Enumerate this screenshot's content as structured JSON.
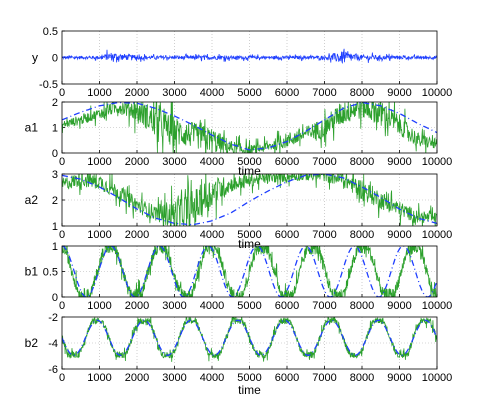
{
  "chart_data": [
    {
      "type": "line",
      "ylabel": "y",
      "xlim": [
        0,
        10000
      ],
      "ylim": [
        -0.5,
        0.5
      ],
      "xticks": [
        "0",
        "1000",
        "2000",
        "3000",
        "4000",
        "5000",
        "6000",
        "7000",
        "8000",
        "9000",
        "10000"
      ],
      "yticks": [
        "-0.5",
        "0",
        "0.5"
      ],
      "grid": true,
      "series": [
        {
          "color": "#1f3fff",
          "style": "solid",
          "kind": "noise",
          "x": [
            0,
            1000,
            1300,
            2000,
            2500,
            3000,
            4000,
            5000,
            6000,
            7000,
            7500,
            7700,
            8000,
            9000,
            10000
          ],
          "values": [
            0,
            0,
            0.02,
            0,
            0,
            0,
            0,
            0,
            0,
            0,
            0,
            0,
            0,
            0,
            0
          ],
          "amp": [
            0.03,
            0.03,
            0.08,
            0.04,
            0.03,
            0.03,
            0.04,
            0.03,
            0.03,
            0.03,
            0.12,
            0.08,
            0.05,
            0.03,
            0.03
          ]
        }
      ]
    },
    {
      "type": "line",
      "ylabel": "a1",
      "xlabel": "time",
      "xlim": [
        0,
        10000
      ],
      "ylim": [
        0,
        2
      ],
      "xticks": [
        "0",
        "1000",
        "2000",
        "3000",
        "4000",
        "5000",
        "6000",
        "7000",
        "8000",
        "9000",
        "10000"
      ],
      "yticks": [
        "0",
        "1",
        "2"
      ],
      "grid": true,
      "series": [
        {
          "color": "#2ca02c",
          "style": "solid",
          "kind": "noise",
          "x": [
            0,
            500,
            1000,
            1500,
            2000,
            2500,
            3000,
            3500,
            4000,
            4500,
            5000,
            5500,
            6000,
            6500,
            7000,
            7500,
            8000,
            8500,
            9000,
            9500,
            10000
          ],
          "values": [
            1.1,
            1.3,
            1.55,
            1.8,
            1.7,
            1.2,
            0.85,
            0.7,
            0.5,
            0.2,
            0.1,
            0.25,
            0.5,
            0.75,
            1.0,
            1.6,
            1.85,
            1.6,
            1.1,
            0.5,
            0.35
          ],
          "amp": [
            0.15,
            0.2,
            0.2,
            0.25,
            0.45,
            0.6,
            0.6,
            0.5,
            0.5,
            0.3,
            0.2,
            0.2,
            0.3,
            0.3,
            0.4,
            0.5,
            0.5,
            0.5,
            0.4,
            0.3,
            0.2
          ]
        },
        {
          "color": "#1f3fff",
          "style": "dashed",
          "kind": "curve",
          "x": [
            0,
            500,
            1000,
            1500,
            2000,
            2500,
            3000,
            3500,
            4000,
            4500,
            5000,
            5500,
            6000,
            6500,
            7000,
            7500,
            8000,
            8500,
            9000,
            9500,
            10000
          ],
          "values": [
            1.3,
            1.6,
            1.85,
            1.98,
            1.95,
            1.75,
            1.45,
            1.1,
            0.7,
            0.35,
            0.12,
            0.2,
            0.45,
            0.85,
            1.3,
            1.75,
            1.98,
            1.85,
            1.55,
            1.15,
            0.8
          ]
        }
      ]
    },
    {
      "type": "line",
      "ylabel": "a2",
      "xlabel": "time",
      "xlim": [
        0,
        10000
      ],
      "ylim": [
        1,
        3
      ],
      "xticks": [
        "0",
        "1000",
        "2000",
        "3000",
        "4000",
        "5000",
        "6000",
        "7000",
        "8000",
        "9000",
        "10000"
      ],
      "yticks": [
        "1",
        "2",
        "3"
      ],
      "grid": true,
      "series": [
        {
          "color": "#2ca02c",
          "style": "solid",
          "kind": "noise",
          "x": [
            0,
            500,
            1000,
            1500,
            2000,
            2500,
            3000,
            3500,
            4000,
            4500,
            5000,
            5500,
            6000,
            6500,
            7000,
            7500,
            8000,
            8500,
            9000,
            9500,
            10000
          ],
          "values": [
            2.6,
            2.8,
            2.7,
            2.3,
            1.8,
            1.5,
            1.45,
            1.7,
            2.3,
            2.6,
            2.75,
            2.85,
            2.9,
            2.95,
            2.95,
            2.8,
            2.4,
            2.0,
            1.65,
            1.35,
            1.3
          ],
          "amp": [
            0.25,
            0.3,
            0.3,
            0.3,
            0.3,
            0.3,
            0.6,
            0.7,
            0.6,
            0.3,
            0.25,
            0.2,
            0.2,
            0.2,
            0.25,
            0.3,
            0.4,
            0.35,
            0.3,
            0.25,
            0.2
          ]
        },
        {
          "color": "#1f3fff",
          "style": "dashed",
          "kind": "curve",
          "x": [
            0,
            500,
            1000,
            1500,
            2000,
            2500,
            3000,
            3500,
            4000,
            4500,
            5000,
            5500,
            6000,
            6500,
            7000,
            7500,
            8000,
            8500,
            9000,
            9500,
            10000
          ],
          "values": [
            2.95,
            2.8,
            2.5,
            2.1,
            1.65,
            1.3,
            1.1,
            1.05,
            1.2,
            1.5,
            1.95,
            2.35,
            2.7,
            2.95,
            3.0,
            2.85,
            2.5,
            2.1,
            1.65,
            1.3,
            1.1
          ]
        }
      ]
    },
    {
      "type": "line",
      "ylabel": "b1",
      "xlim": [
        0,
        10000
      ],
      "ylim": [
        0,
        1
      ],
      "xticks": [
        "0",
        "1000",
        "2000",
        "3000",
        "4000",
        "5000",
        "6000",
        "7000",
        "8000",
        "9000",
        "10000"
      ],
      "yticks": [
        "0",
        "0.5",
        "1"
      ],
      "grid": true,
      "series": [
        {
          "color": "#2ca02c",
          "style": "solid",
          "kind": "sine-noise",
          "period": 1350,
          "phase": 0.3,
          "mid": 0.5,
          "amp_wave": 0.45,
          "noise": 0.12
        },
        {
          "color": "#1f3fff",
          "style": "dashed",
          "kind": "sine",
          "period": 1300,
          "phase": 0.25,
          "mid": 0.5,
          "amp_wave": 0.5
        }
      ]
    },
    {
      "type": "line",
      "ylabel": "b2",
      "xlabel": "time",
      "xlim": [
        0,
        10000
      ],
      "ylim": [
        -6,
        -2
      ],
      "xticks": [
        "0",
        "1000",
        "2000",
        "3000",
        "4000",
        "5000",
        "6000",
        "7000",
        "8000",
        "9000",
        "10000"
      ],
      "yticks": [
        "-6",
        "-4",
        "-2"
      ],
      "grid": true,
      "series": [
        {
          "color": "#2ca02c",
          "style": "solid",
          "kind": "sine-noise",
          "period": 1250,
          "phase": 0.5,
          "mid": -3.6,
          "amp_wave": 1.3,
          "noise": 0.25
        },
        {
          "color": "#1f3fff",
          "style": "dashed",
          "kind": "sine",
          "period": 1250,
          "phase": 0.5,
          "mid": -3.6,
          "amp_wave": 1.35
        }
      ]
    }
  ]
}
